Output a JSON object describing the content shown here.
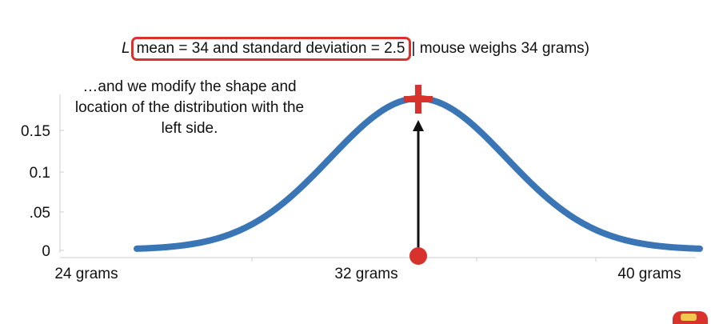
{
  "formula": {
    "prefix": "L",
    "boxed": "mean = 34 and standard deviation = 2.5",
    "suffix": "| mouse weighs 34 grams)"
  },
  "annotation": "…and we modify the shape and location of the distribution with the left side.",
  "colors": {
    "curve": "#3a76b6",
    "highlight": "#d7322c",
    "arrow": "#111111",
    "axis": "#cccccc"
  },
  "chart_data": {
    "type": "line",
    "title": "",
    "xlabel": "",
    "ylabel": "",
    "distribution": {
      "name": "normal",
      "mean": 34,
      "sd": 2.5
    },
    "xlim": [
      24,
      44
    ],
    "ylim": [
      0,
      0.2
    ],
    "x_ticks": [
      {
        "value": 24,
        "label": "24 grams"
      },
      {
        "value": 32,
        "label": "32 grams"
      },
      {
        "value": 40,
        "label": "40 grams"
      }
    ],
    "y_ticks": [
      {
        "value": 0,
        "label": "0"
      },
      {
        "value": 0.05,
        "label": ".05"
      },
      {
        "value": 0.1,
        "label": "0.1"
      },
      {
        "value": 0.15,
        "label": "0.15"
      }
    ],
    "observation": {
      "x": 34,
      "marker": "red dot"
    },
    "peak_marker": {
      "x": 34,
      "marker": "red plus"
    },
    "grid": false,
    "legend": "none"
  },
  "logo": {
    "icon": "channel-logo-icon"
  }
}
